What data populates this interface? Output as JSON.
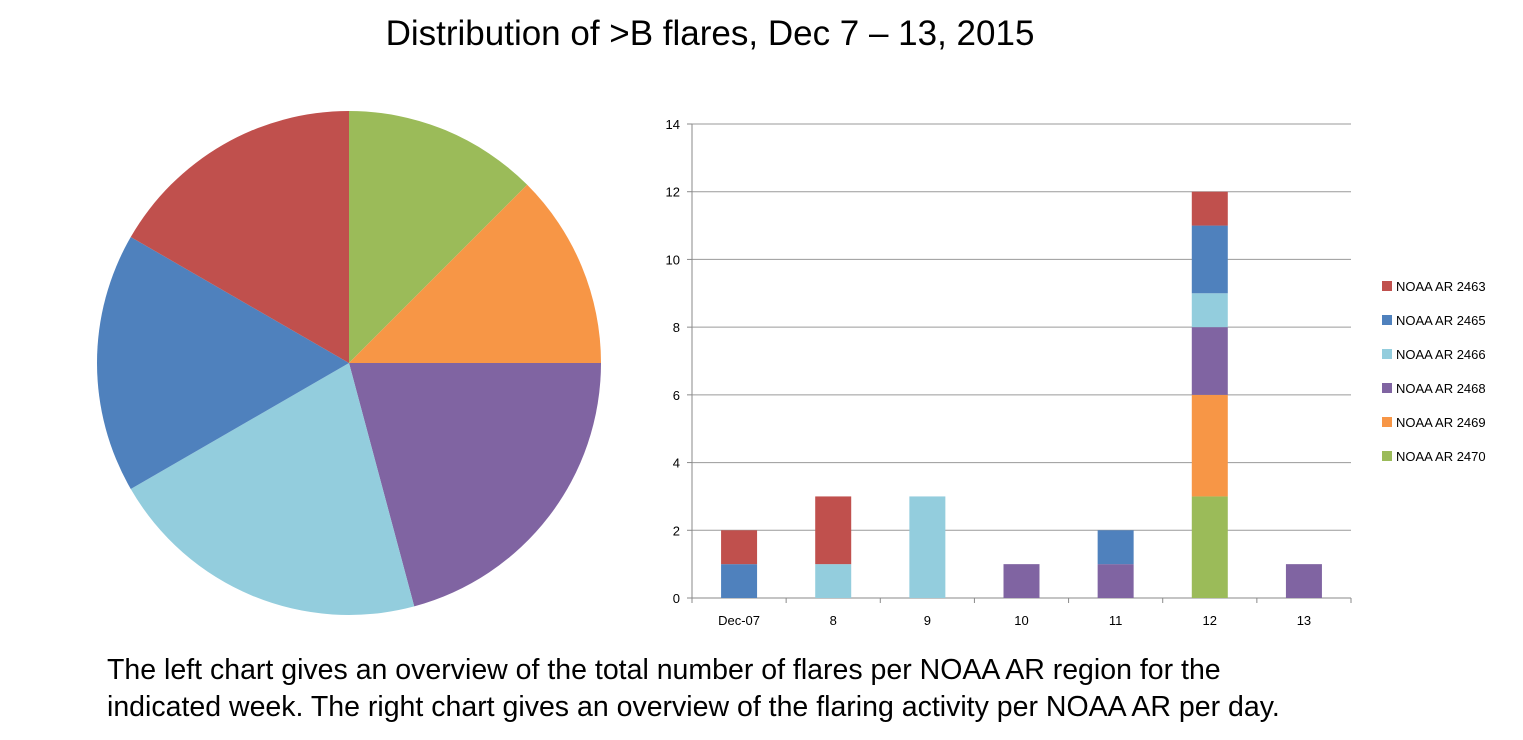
{
  "title": "Distribution of >B flares, Dec 7 – 13, 2015",
  "caption": {
    "line1": "The left chart gives an overview of the total number of flares per NOAA AR region for the",
    "line2": "indicated week. The right chart gives an overview of the flaring activity per NOAA AR per day."
  },
  "chart_data": [
    {
      "type": "pie",
      "labels": [
        "NOAA AR 2463",
        "NOAA AR 2465",
        "NOAA AR 2466",
        "NOAA AR 2468",
        "NOAA AR 2469",
        "NOAA AR 2470"
      ],
      "values": [
        4,
        4,
        5,
        5,
        3,
        3
      ],
      "colors": [
        "#c0504d",
        "#4f81bd",
        "#93cddd",
        "#8064a2",
        "#f79646",
        "#9bbb59"
      ],
      "start_angle_deg": 0,
      "direction": "clockwise",
      "slice_order": [
        "NOAA AR 2470",
        "NOAA AR 2469",
        "NOAA AR 2468",
        "NOAA AR 2466",
        "NOAA AR 2465",
        "NOAA AR 2463"
      ]
    },
    {
      "type": "bar",
      "stacked": true,
      "categories": [
        "Dec-07",
        "8",
        "9",
        "10",
        "11",
        "12",
        "13"
      ],
      "ylim": [
        0,
        14
      ],
      "yticks": [
        0,
        2,
        4,
        6,
        8,
        10,
        12,
        14
      ],
      "grid": true,
      "legend": "right",
      "series": [
        {
          "name": "NOAA AR 2463",
          "color": "#c0504d",
          "values": [
            1,
            2,
            0,
            0,
            0,
            1,
            0
          ]
        },
        {
          "name": "NOAA AR 2465",
          "color": "#4f81bd",
          "values": [
            1,
            0,
            0,
            0,
            1,
            2,
            0
          ]
        },
        {
          "name": "NOAA AR 2466",
          "color": "#93cddd",
          "values": [
            0,
            1,
            3,
            0,
            0,
            1,
            0
          ]
        },
        {
          "name": "NOAA AR 2468",
          "color": "#8064a2",
          "values": [
            0,
            0,
            0,
            1,
            1,
            2,
            1
          ]
        },
        {
          "name": "NOAA AR 2469",
          "color": "#f79646",
          "values": [
            0,
            0,
            0,
            0,
            0,
            3,
            0
          ]
        },
        {
          "name": "NOAA AR 2470",
          "color": "#9bbb59",
          "values": [
            0,
            0,
            0,
            0,
            0,
            3,
            0
          ]
        }
      ],
      "stack_order_bottom_to_top": [
        "NOAA AR 2470",
        "NOAA AR 2469",
        "NOAA AR 2468",
        "NOAA AR 2466",
        "NOAA AR 2465",
        "NOAA AR 2463"
      ]
    }
  ]
}
